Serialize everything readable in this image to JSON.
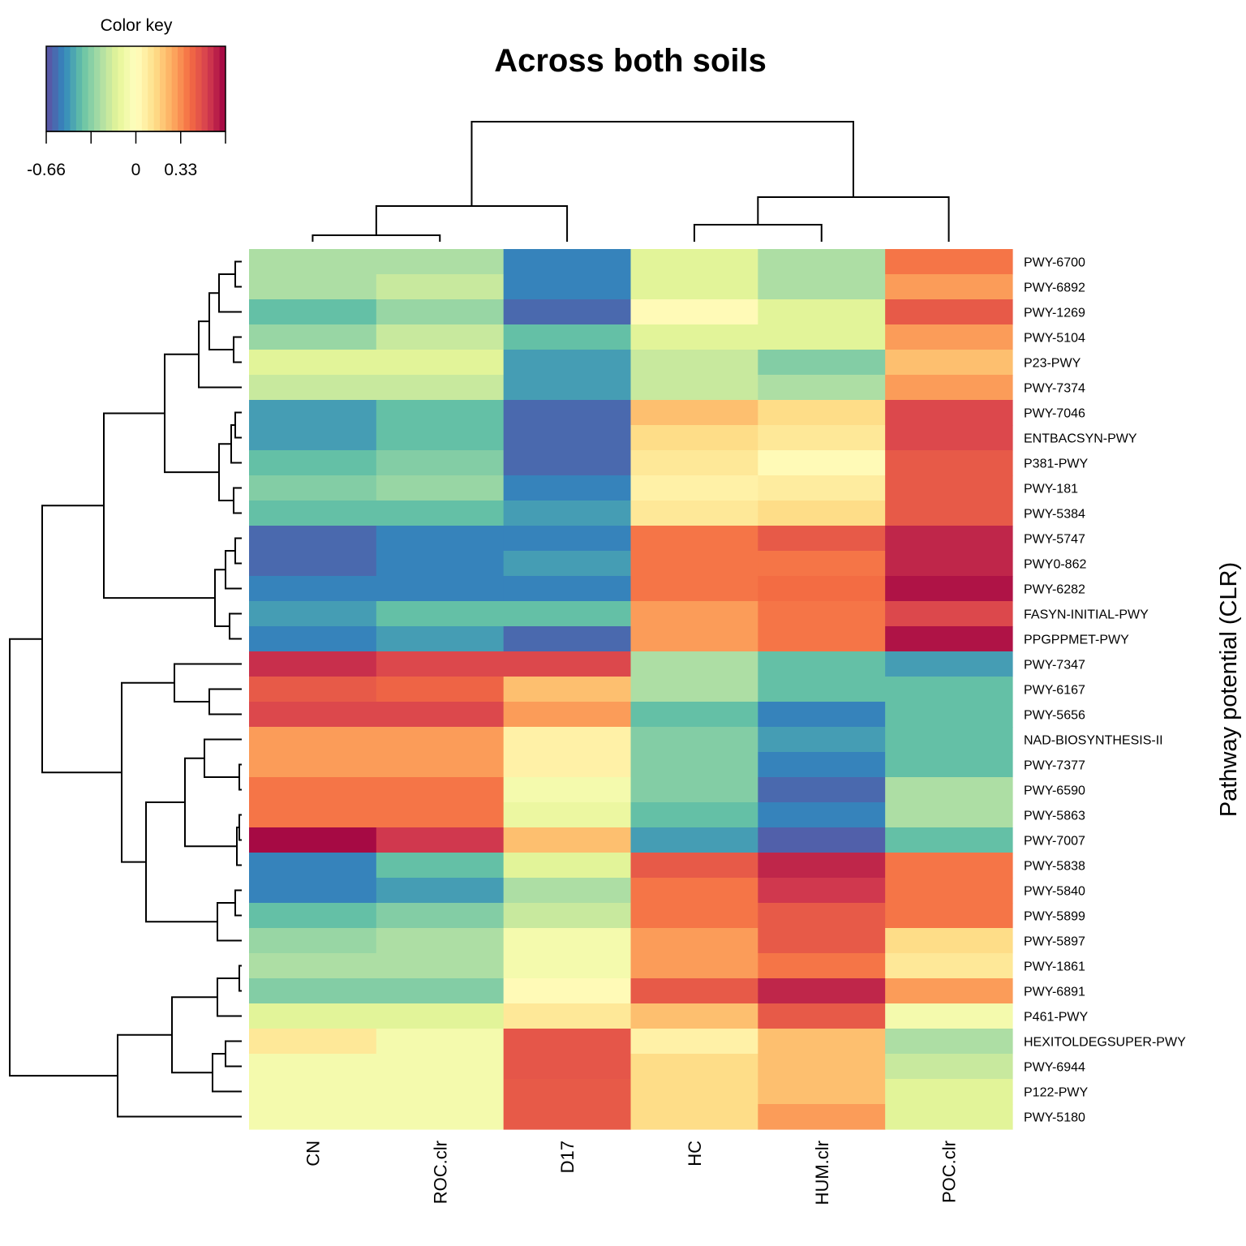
{
  "colors": {
    "palette": [
      "#5E4FA2",
      "#3288BD",
      "#66C2A5",
      "#ABDDA4",
      "#E6F598",
      "#FFFFBF",
      "#FEE08B",
      "#FDAE61",
      "#F46D43",
      "#D53E4F",
      "#9E0142"
    ]
  },
  "chart_data": {
    "type": "heatmap",
    "title": "Across both soils",
    "ylabel": "Pathway potential (CLR)",
    "color_key": {
      "title": "Color key",
      "ticks": [
        "-0.66",
        "0",
        "0.33"
      ],
      "range": [
        -0.66,
        0.66
      ]
    },
    "columns": [
      "CN",
      "ROC.clr",
      "D17",
      "HC",
      "HUM.clr",
      "POC.clr"
    ],
    "row_labels": [
      "PWY-6700",
      "PWY-6892",
      "PWY-1269",
      "PWY-5104",
      "P23-PWY",
      "PWY-7374",
      "PWY-7046",
      "ENTBACSYN-PWY",
      "P381-PWY",
      "PWY-181",
      "PWY-5384",
      "PWY-5747",
      "PWY0-862",
      "PWY-6282",
      "FASYN-INITIAL-PWY",
      "PPGPPMET-PWY",
      "PWY-7347",
      "PWY-6167",
      "PWY-5656",
      "NAD-BIOSYNTHESIS-II",
      "PWY-7377",
      "PWY-6590",
      "PWY-5863",
      "PWY-7007",
      "PWY-5838",
      "PWY-5840",
      "PWY-5899",
      "PWY-5897",
      "PWY-1861",
      "PWY-6891",
      "P461-PWY",
      "HEXITOLDEGSUPER-PWY",
      "PWY-6944",
      "P122-PWY",
      "PWY-5180"
    ],
    "values": [
      [
        -0.26,
        -0.26,
        -0.54,
        -0.14,
        -0.26,
        0.38
      ],
      [
        -0.26,
        -0.2,
        -0.54,
        -0.14,
        -0.26,
        0.3
      ],
      [
        -0.4,
        -0.3,
        -0.6,
        0.02,
        -0.14,
        0.45
      ],
      [
        -0.3,
        -0.2,
        -0.4,
        -0.14,
        -0.14,
        0.3
      ],
      [
        -0.14,
        -0.14,
        -0.48,
        -0.2,
        -0.34,
        0.22
      ],
      [
        -0.2,
        -0.2,
        -0.48,
        -0.2,
        -0.26,
        0.3
      ],
      [
        -0.48,
        -0.4,
        -0.6,
        0.22,
        0.14,
        0.5
      ],
      [
        -0.48,
        -0.4,
        -0.6,
        0.14,
        0.1,
        0.5
      ],
      [
        -0.4,
        -0.34,
        -0.6,
        0.1,
        0.02,
        0.45
      ],
      [
        -0.34,
        -0.3,
        -0.54,
        0.06,
        0.08,
        0.45
      ],
      [
        -0.4,
        -0.4,
        -0.48,
        0.1,
        0.14,
        0.45
      ],
      [
        -0.6,
        -0.54,
        -0.54,
        0.38,
        0.45,
        0.58
      ],
      [
        -0.6,
        -0.54,
        -0.48,
        0.38,
        0.38,
        0.58
      ],
      [
        -0.54,
        -0.54,
        -0.54,
        0.38,
        0.4,
        0.62
      ],
      [
        -0.48,
        -0.4,
        -0.4,
        0.3,
        0.38,
        0.5
      ],
      [
        -0.54,
        -0.48,
        -0.6,
        0.3,
        0.38,
        0.62
      ],
      [
        0.56,
        0.5,
        0.5,
        -0.26,
        -0.4,
        -0.48
      ],
      [
        0.45,
        0.42,
        0.22,
        -0.26,
        -0.4,
        -0.4
      ],
      [
        0.5,
        0.5,
        0.3,
        -0.4,
        -0.54,
        -0.4
      ],
      [
        0.3,
        0.3,
        0.06,
        -0.34,
        -0.48,
        -0.4
      ],
      [
        0.3,
        0.3,
        0.06,
        -0.34,
        -0.54,
        -0.4
      ],
      [
        0.38,
        0.38,
        -0.06,
        -0.34,
        -0.6,
        -0.26
      ],
      [
        0.38,
        0.38,
        -0.1,
        -0.4,
        -0.54,
        -0.26
      ],
      [
        0.64,
        0.54,
        0.22,
        -0.48,
        -0.62,
        -0.4
      ],
      [
        -0.54,
        -0.4,
        -0.14,
        0.45,
        0.58,
        0.38
      ],
      [
        -0.54,
        -0.48,
        -0.26,
        0.38,
        0.54,
        0.38
      ],
      [
        -0.4,
        -0.34,
        -0.2,
        0.38,
        0.45,
        0.38
      ],
      [
        -0.3,
        -0.26,
        -0.06,
        0.3,
        0.45,
        0.14
      ],
      [
        -0.26,
        -0.26,
        -0.06,
        0.3,
        0.38,
        0.1
      ],
      [
        -0.34,
        -0.34,
        0.02,
        0.45,
        0.58,
        0.3
      ],
      [
        -0.14,
        -0.14,
        0.1,
        0.22,
        0.45,
        -0.06
      ],
      [
        0.1,
        -0.06,
        0.46,
        0.06,
        0.22,
        -0.26
      ],
      [
        -0.06,
        -0.06,
        0.46,
        0.14,
        0.22,
        -0.2
      ],
      [
        -0.06,
        -0.06,
        0.45,
        0.14,
        0.22,
        -0.14
      ],
      [
        -0.06,
        -0.06,
        0.45,
        0.14,
        0.3,
        -0.14
      ]
    ]
  }
}
